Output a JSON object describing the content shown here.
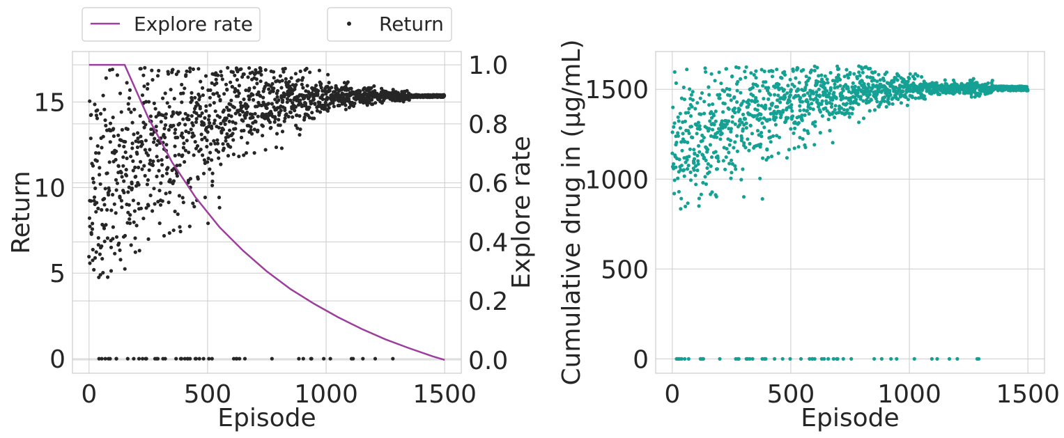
{
  "colors": {
    "explore_rate": "#9b3e9c",
    "return_points": "#262626",
    "drug_points": "#15a094",
    "grid": "#cccccc",
    "spine": "#cccccc"
  },
  "legend": {
    "explore_label": "Explore rate",
    "return_label": "Return"
  },
  "chart_data": [
    {
      "type": "scatter",
      "panel": "left",
      "title": "",
      "xlabel": "Episode",
      "ylabel": "Return",
      "y2label": "Explore rate",
      "xlim": [
        -70,
        1570
      ],
      "ylim": [
        -0.85,
        17.95
      ],
      "y2lim": [
        -0.045,
        1.045
      ],
      "x_ticks": [
        0,
        500,
        1000,
        1500
      ],
      "y_ticks": [
        0,
        5,
        10,
        15
      ],
      "y2_ticks": [
        0.0,
        0.2,
        0.4,
        0.6,
        0.8,
        1.0
      ],
      "grid": true,
      "legend_position": "above plot, two boxes",
      "series": [
        {
          "name": "Return",
          "kind": "scatter",
          "axis": "left",
          "description": "one point per episode for 1500 episodes; values spread 4.5-16 early, converge near 15.3 late; episodes with zero return scattered up to ~1320",
          "converged_value": 15.35,
          "zero_return_until_episode": 1320
        },
        {
          "name": "Explore rate",
          "kind": "line",
          "axis": "right",
          "x": [
            0,
            150,
            150,
            250,
            350,
            450,
            550,
            650,
            750,
            850,
            950,
            1050,
            1150,
            1250,
            1350,
            1450,
            1500
          ],
          "y": [
            1.0,
            1.0,
            1.0,
            0.82,
            0.67,
            0.55,
            0.45,
            0.37,
            0.3,
            0.24,
            0.19,
            0.145,
            0.105,
            0.07,
            0.04,
            0.012,
            0.0
          ]
        }
      ]
    },
    {
      "type": "scatter",
      "panel": "right",
      "title": "",
      "xlabel": "Episode",
      "ylabel": "Cumulative drug in (μg/mL)",
      "xlim": [
        -70,
        1570
      ],
      "ylim": [
        -80,
        1710
      ],
      "x_ticks": [
        0,
        500,
        1000,
        1500
      ],
      "y_ticks": [
        0,
        500,
        1000,
        1500
      ],
      "grid": true,
      "series": [
        {
          "kind": "scatter",
          "description": "one point per episode for 1500 episodes; values 800-1600 early, converge near 1505 late; zero values scattered up to ~1310",
          "converged_value": 1505,
          "zero_until_episode": 1310
        }
      ]
    }
  ]
}
